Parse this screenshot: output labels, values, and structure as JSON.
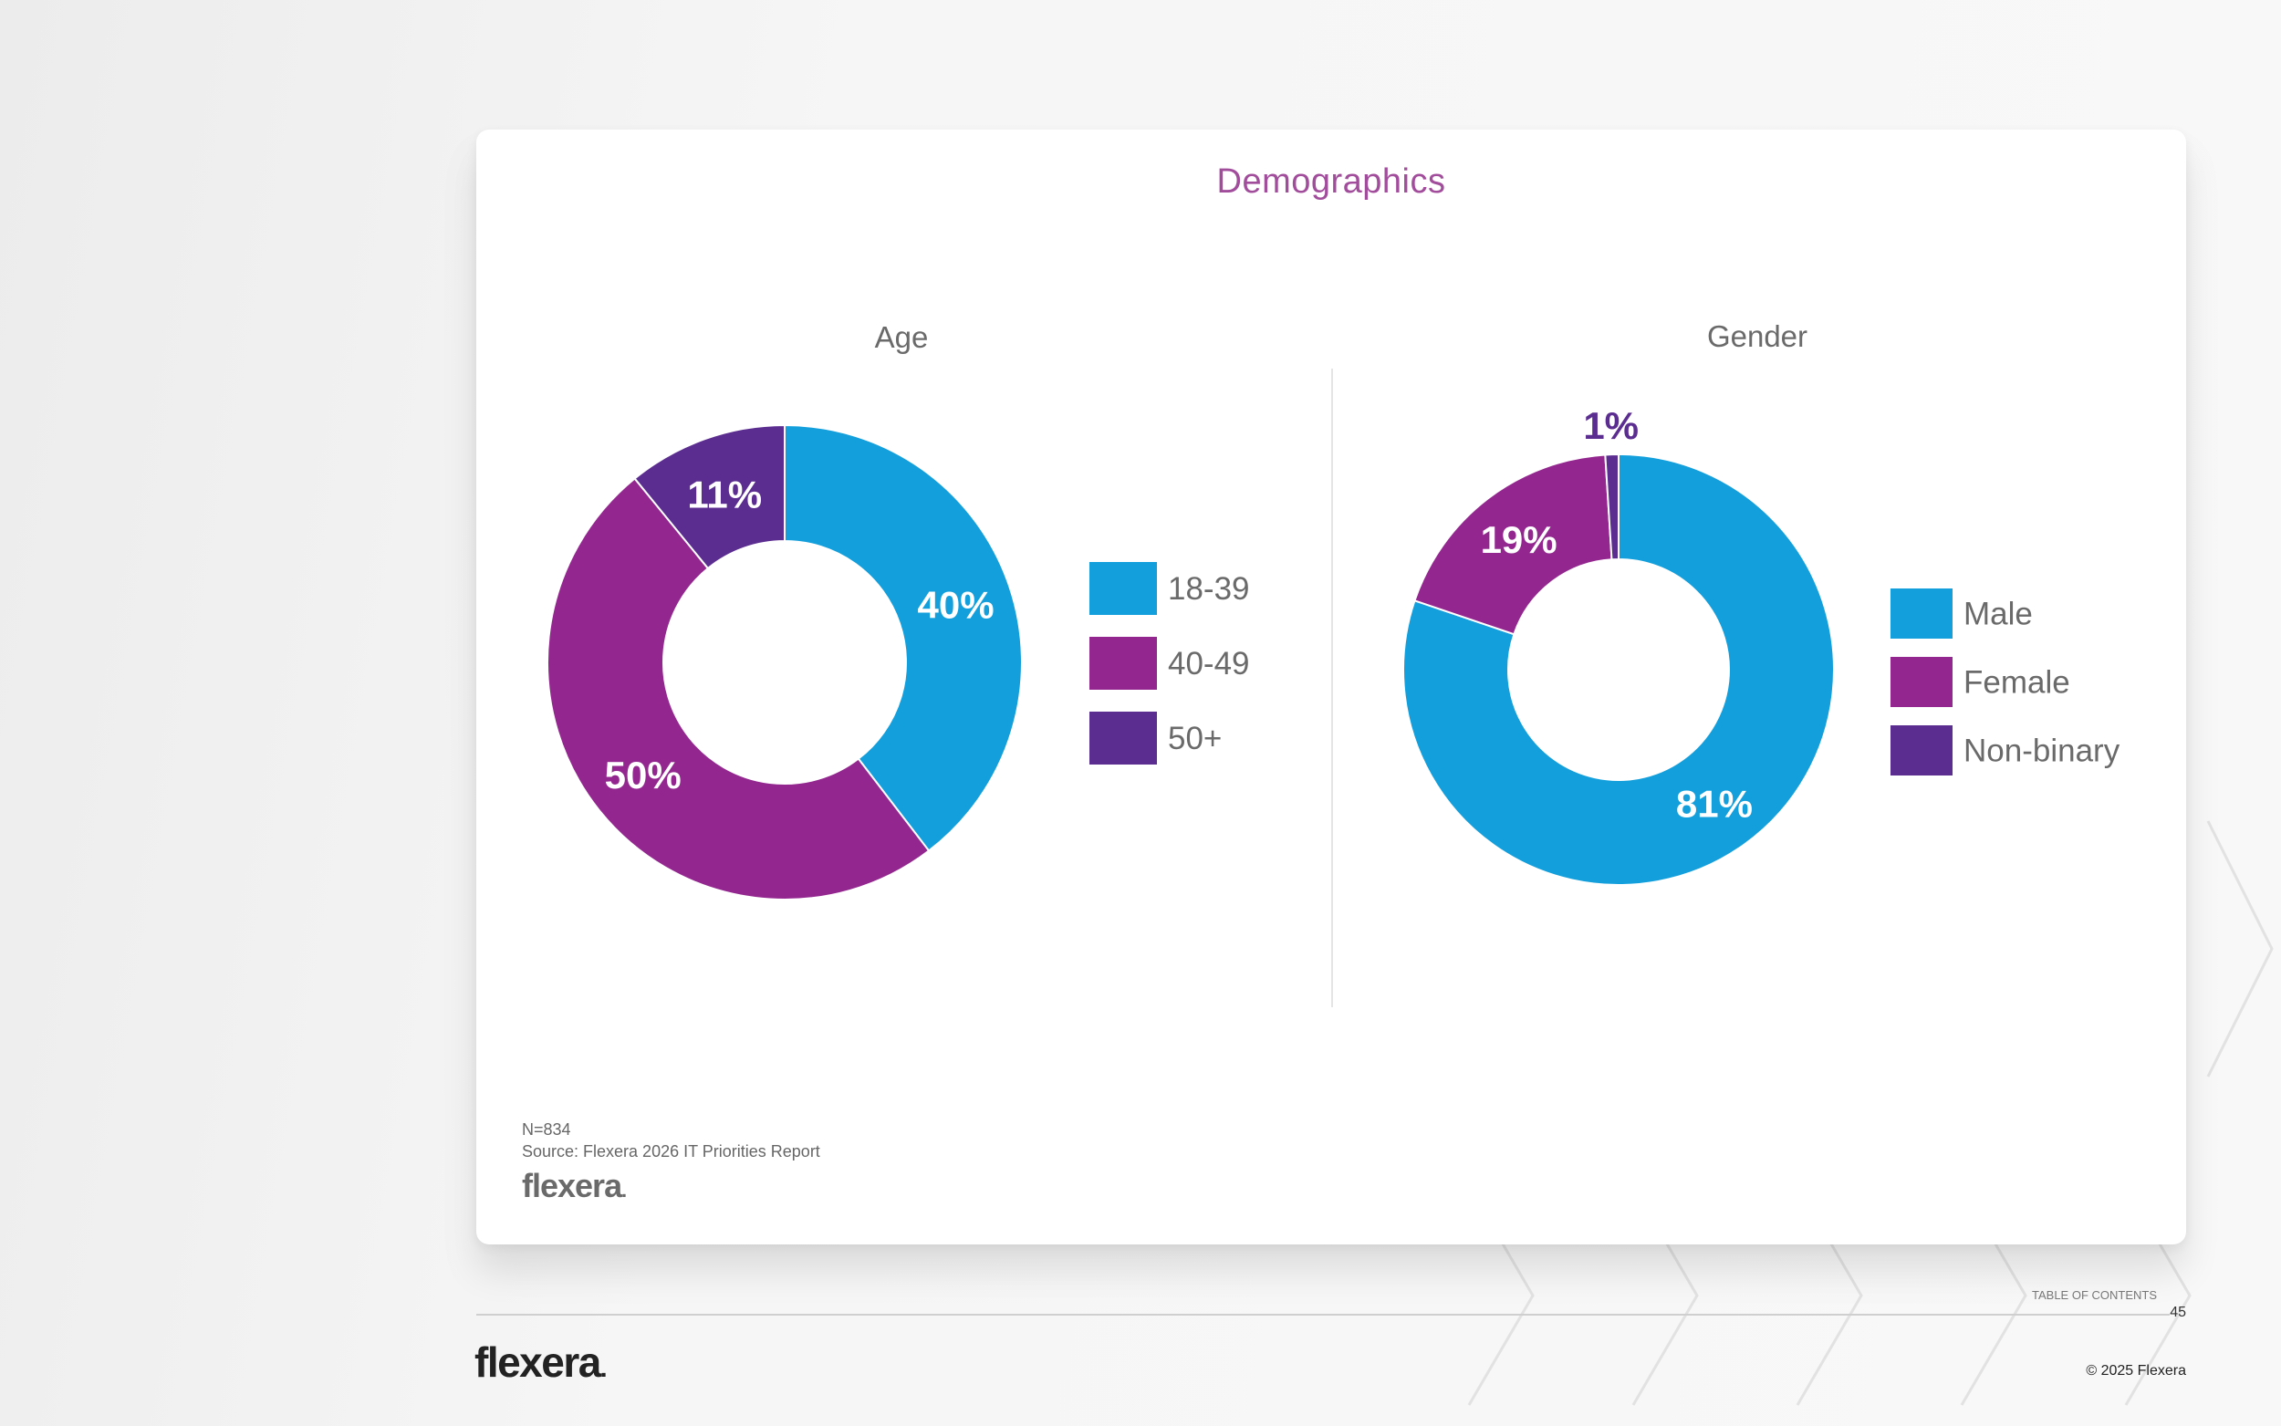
{
  "colors": {
    "blue": "#129fdc",
    "magenta": "#93278f",
    "purple": "#5c2d91",
    "title": "#a24d9c",
    "axis_text": "#6a6a6a",
    "label_dark": "#5c2d91"
  },
  "page": {
    "title": "Demographics",
    "note_n": "N=834",
    "note_source": "Source: Flexera 2026 IT Priorities Report",
    "brand": "flexera",
    "brand_dot": ".",
    "toc": "TABLE OF CONTENTS",
    "page_number": "45",
    "copyright": "© 2025 Flexera"
  },
  "chart_data": [
    {
      "type": "pie",
      "title": "Age",
      "categories": [
        "18-39",
        "40-49",
        "50+"
      ],
      "values": [
        40,
        50,
        11
      ],
      "labels": [
        "40%",
        "50%",
        "11%"
      ],
      "colors": [
        "#129fdc",
        "#93278f",
        "#5c2d91"
      ],
      "legend": "right"
    },
    {
      "type": "pie",
      "title": "Gender",
      "categories": [
        "Male",
        "Female",
        "Non-binary"
      ],
      "values": [
        81,
        19,
        1
      ],
      "labels": [
        "81%",
        "19%",
        "1%"
      ],
      "colors": [
        "#129fdc",
        "#93278f",
        "#5c2d91"
      ],
      "legend": "right"
    }
  ]
}
